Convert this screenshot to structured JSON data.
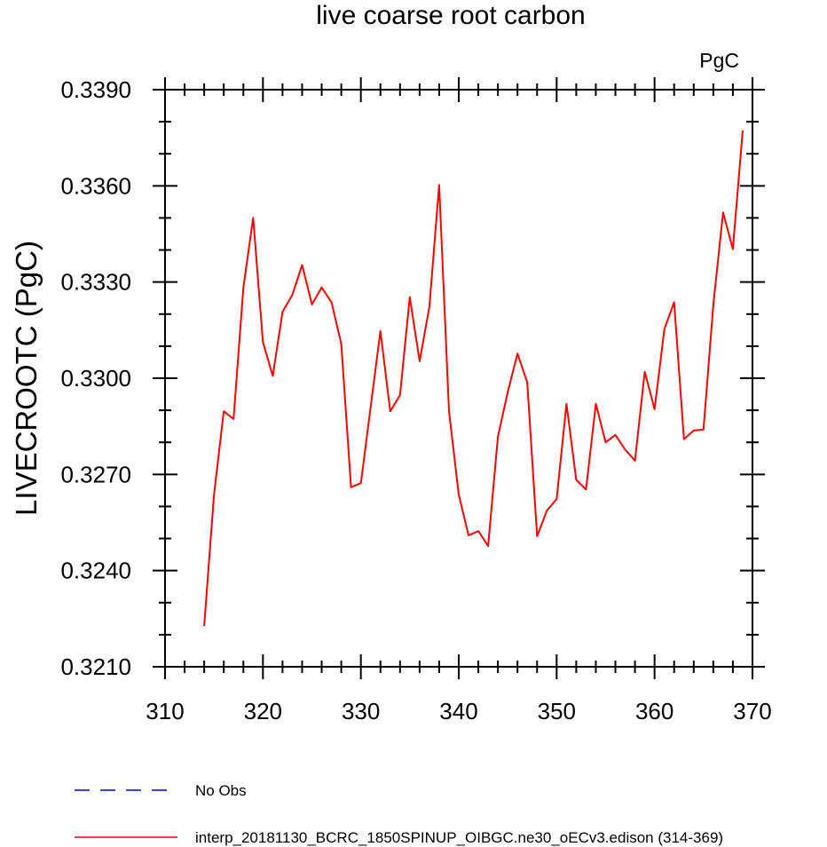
{
  "chart_data": {
    "type": "line",
    "title": "live coarse root carbon",
    "units": "PgC",
    "ylabel": "LIVECROOTC  (PgC)",
    "xlabel": "",
    "xlim": [
      310,
      370
    ],
    "ylim": [
      0.321,
      0.339
    ],
    "xticks": [
      310,
      320,
      330,
      340,
      350,
      360,
      370
    ],
    "xtick_labels": [
      "310",
      "320",
      "330",
      "340",
      "350",
      "360",
      "370"
    ],
    "yticks": [
      0.321,
      0.324,
      0.327,
      0.33,
      0.333,
      0.336,
      0.339
    ],
    "ytick_labels": [
      "0.3210",
      "0.3240",
      "0.3270",
      "0.3300",
      "0.3330",
      "0.3360",
      "0.3390"
    ],
    "series": [
      {
        "name": "interp_20181130_BCRC_1850SPINUP_OIBGC.ne30_oECv3.edison (314-369)",
        "color": "#ff0000",
        "x": [
          314,
          315,
          316,
          317,
          318,
          319,
          320,
          321,
          322,
          323,
          324,
          325,
          326,
          327,
          328,
          329,
          330,
          331,
          332,
          333,
          334,
          335,
          336,
          337,
          338,
          339,
          340,
          341,
          342,
          343,
          344,
          345,
          346,
          347,
          348,
          349,
          350,
          351,
          352,
          353,
          354,
          355,
          356,
          357,
          358,
          359,
          360,
          361,
          362,
          363,
          364,
          365,
          366,
          367,
          368,
          369
        ],
        "values": [
          0.32227,
          0.32637,
          0.32897,
          0.32873,
          0.33283,
          0.335,
          0.33113,
          0.33007,
          0.33207,
          0.3326,
          0.33353,
          0.3323,
          0.33283,
          0.33237,
          0.33107,
          0.3266,
          0.32673,
          0.3291,
          0.33147,
          0.32897,
          0.32947,
          0.33253,
          0.33053,
          0.33223,
          0.33603,
          0.32897,
          0.32637,
          0.3251,
          0.32523,
          0.32477,
          0.32817,
          0.32957,
          0.33077,
          0.32987,
          0.32507,
          0.32587,
          0.32623,
          0.3292,
          0.32683,
          0.32653,
          0.3292,
          0.328,
          0.32823,
          0.32777,
          0.32743,
          0.3302,
          0.32903,
          0.33153,
          0.33237,
          0.3281,
          0.32837,
          0.3284,
          0.3323,
          0.33517,
          0.33403,
          0.33773
        ]
      }
    ],
    "legend": {
      "placement": "bottom-left",
      "entries": [
        {
          "label": "No Obs",
          "color": "#0000ff",
          "style": "dashed"
        },
        {
          "label": "interp_20181130_BCRC_1850SPINUP_OIBGC.ne30_oECv3.edison (314-369)",
          "color": "#ff0000",
          "style": "solid"
        }
      ]
    }
  }
}
